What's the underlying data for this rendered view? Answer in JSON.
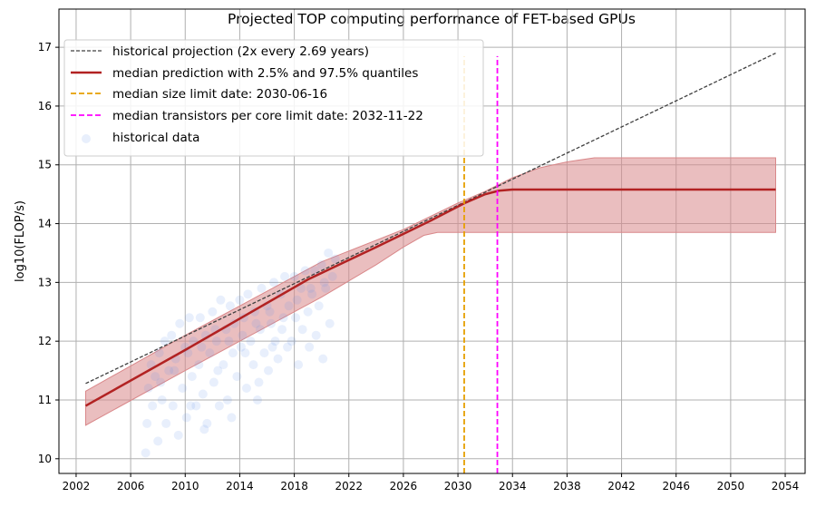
{
  "chart_data": {
    "type": "line",
    "title": "Projected TOP computing performance of FET-based GPUs",
    "xlabel": "",
    "ylabel": "log10(FLOP/s)",
    "xlim": [
      2000.74,
      2055.46
    ],
    "ylim": [
      9.75,
      17.65
    ],
    "xticks": [
      2002,
      2006,
      2010,
      2014,
      2018,
      2022,
      2026,
      2030,
      2034,
      2038,
      2042,
      2046,
      2050,
      2054
    ],
    "yticks": [
      10,
      11,
      12,
      13,
      14,
      15,
      16,
      17
    ],
    "grid": true,
    "legend_position": "top-left",
    "legend": [
      "historical projection (2x every 2.69 years)",
      "median prediction with 2.5% and 97.5% quantiles",
      "median size limit date: 2030-06-16",
      "median transistors per core limit date: 2032-11-22",
      "historical data"
    ],
    "colors": {
      "projection": "#404040",
      "median": "#b22222",
      "band": "#d9888a",
      "size_limit": "#e69f00",
      "transistor_limit": "#ff00ff",
      "scatter": "#6495ed"
    },
    "projection": {
      "x": [
        2002.7,
        2053.3
      ],
      "y": [
        11.28,
        16.9
      ]
    },
    "median": {
      "x": [
        2002.7,
        2010,
        2019,
        2024,
        2028,
        2030.5,
        2032,
        2033,
        2034,
        2053.3
      ],
      "y": [
        10.9,
        11.85,
        13.05,
        13.6,
        14.05,
        14.35,
        14.5,
        14.56,
        14.58,
        14.58
      ]
    },
    "upper": {
      "x": [
        2002.7,
        2010,
        2020,
        2026,
        2030,
        2032,
        2034,
        2036,
        2038,
        2040,
        2053.3
      ],
      "y": [
        11.15,
        12.1,
        13.35,
        13.9,
        14.35,
        14.55,
        14.78,
        14.95,
        15.05,
        15.12,
        15.12
      ]
    },
    "lower": {
      "x": [
        2002.7,
        2010,
        2020,
        2024,
        2026,
        2027.5,
        2028.5,
        2053.3
      ],
      "y": [
        10.57,
        11.5,
        12.75,
        13.3,
        13.6,
        13.8,
        13.85,
        13.85
      ]
    },
    "size_limit_year": 2030.46,
    "transistor_limit_year": 2032.89,
    "vline_top": 16.85,
    "scatter": [
      [
        2007.1,
        10.1
      ],
      [
        2007.2,
        10.6
      ],
      [
        2007.3,
        11.2
      ],
      [
        2007.5,
        11.6
      ],
      [
        2007.6,
        10.9
      ],
      [
        2007.8,
        11.4
      ],
      [
        2008.0,
        10.3
      ],
      [
        2008.1,
        11.8
      ],
      [
        2008.3,
        11.0
      ],
      [
        2008.5,
        12.0
      ],
      [
        2008.6,
        10.6
      ],
      [
        2008.8,
        11.5
      ],
      [
        2009.0,
        12.1
      ],
      [
        2009.1,
        10.9
      ],
      [
        2009.3,
        11.7
      ],
      [
        2009.5,
        10.4
      ],
      [
        2009.6,
        12.3
      ],
      [
        2009.8,
        11.2
      ],
      [
        2010.0,
        11.9
      ],
      [
        2010.1,
        10.7
      ],
      [
        2010.3,
        12.4
      ],
      [
        2010.5,
        11.4
      ],
      [
        2010.6,
        12.0
      ],
      [
        2010.8,
        10.9
      ],
      [
        2011.0,
        11.6
      ],
      [
        2011.1,
        12.4
      ],
      [
        2011.3,
        11.1
      ],
      [
        2011.5,
        12.1
      ],
      [
        2011.6,
        10.6
      ],
      [
        2011.8,
        11.8
      ],
      [
        2012.0,
        12.5
      ],
      [
        2012.1,
        11.3
      ],
      [
        2012.3,
        12.0
      ],
      [
        2012.5,
        10.9
      ],
      [
        2012.6,
        12.7
      ],
      [
        2012.8,
        11.6
      ],
      [
        2013.0,
        12.2
      ],
      [
        2013.1,
        11.0
      ],
      [
        2013.3,
        12.6
      ],
      [
        2013.5,
        11.8
      ],
      [
        2013.6,
        12.3
      ],
      [
        2013.8,
        11.4
      ],
      [
        2014.0,
        12.7
      ],
      [
        2014.1,
        11.9
      ],
      [
        2014.3,
        12.4
      ],
      [
        2014.5,
        11.2
      ],
      [
        2014.6,
        12.8
      ],
      [
        2014.8,
        12.0
      ],
      [
        2015.0,
        11.6
      ],
      [
        2015.1,
        12.5
      ],
      [
        2015.3,
        11.0
      ],
      [
        2015.5,
        12.2
      ],
      [
        2015.6,
        12.9
      ],
      [
        2015.8,
        11.8
      ],
      [
        2016.0,
        12.6
      ],
      [
        2016.1,
        11.5
      ],
      [
        2016.3,
        12.3
      ],
      [
        2016.5,
        13.0
      ],
      [
        2016.6,
        12.0
      ],
      [
        2016.8,
        11.7
      ],
      [
        2017.0,
        12.8
      ],
      [
        2017.1,
        12.2
      ],
      [
        2017.3,
        13.1
      ],
      [
        2017.5,
        11.9
      ],
      [
        2017.6,
        12.6
      ],
      [
        2017.8,
        12.0
      ],
      [
        2018.0,
        13.1
      ],
      [
        2018.1,
        12.4
      ],
      [
        2018.3,
        11.6
      ],
      [
        2018.5,
        12.9
      ],
      [
        2018.6,
        12.2
      ],
      [
        2018.8,
        13.2
      ],
      [
        2019.0,
        12.5
      ],
      [
        2019.1,
        11.9
      ],
      [
        2019.3,
        12.8
      ],
      [
        2019.5,
        13.2
      ],
      [
        2019.6,
        12.1
      ],
      [
        2019.8,
        12.6
      ],
      [
        2020.0,
        13.3
      ],
      [
        2020.1,
        11.7
      ],
      [
        2020.3,
        12.9
      ],
      [
        2020.5,
        13.5
      ],
      [
        2020.6,
        12.3
      ],
      [
        2020.8,
        13.1
      ],
      [
        2021.0,
        13.4
      ],
      [
        2008.2,
        11.3
      ],
      [
        2009.2,
        11.5
      ],
      [
        2010.2,
        11.8
      ],
      [
        2011.2,
        11.9
      ],
      [
        2012.2,
        12.2
      ],
      [
        2013.2,
        12.0
      ],
      [
        2014.2,
        12.1
      ],
      [
        2015.2,
        12.3
      ],
      [
        2016.2,
        12.5
      ],
      [
        2017.2,
        12.4
      ],
      [
        2018.2,
        12.7
      ],
      [
        2019.2,
        12.9
      ],
      [
        2020.2,
        13.0
      ],
      [
        2012.4,
        11.5
      ],
      [
        2014.4,
        11.8
      ],
      [
        2016.4,
        11.9
      ],
      [
        2010.4,
        10.9
      ],
      [
        2011.4,
        10.5
      ],
      [
        2013.4,
        10.7
      ],
      [
        2015.4,
        11.3
      ]
    ]
  }
}
